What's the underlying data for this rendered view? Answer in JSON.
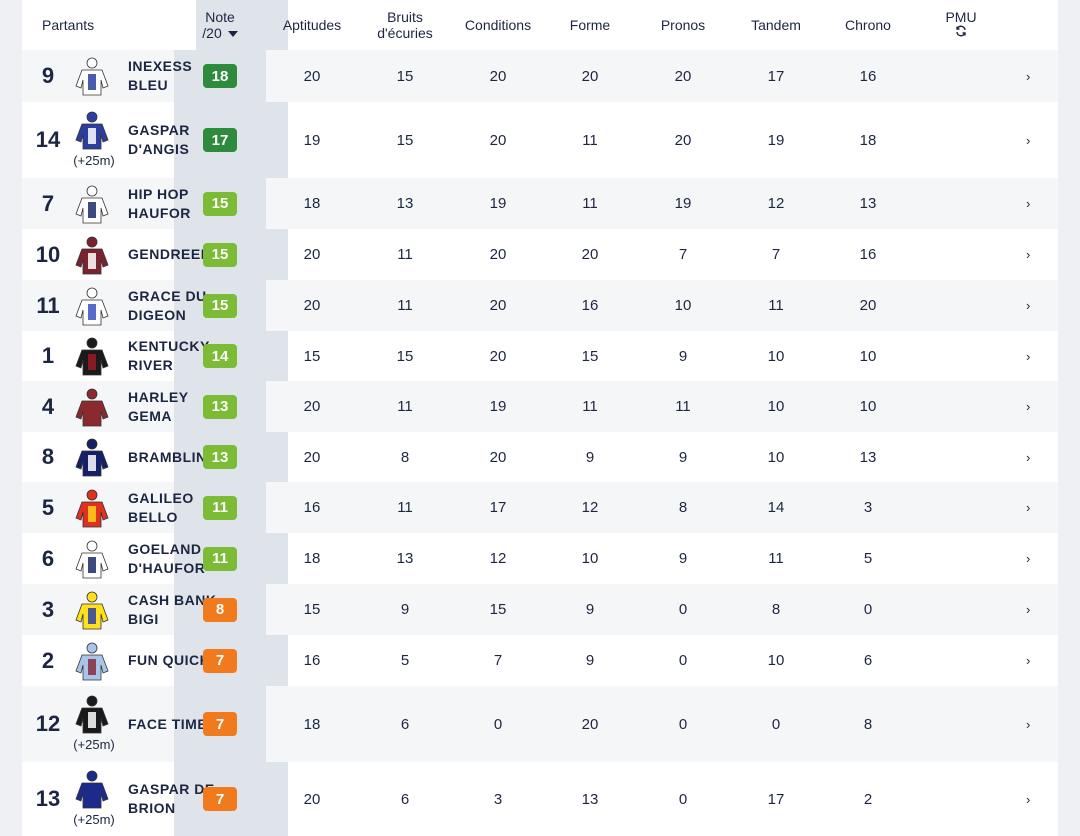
{
  "header": {
    "partants": "Partants",
    "note_line1": "Note",
    "note_line2": "/20",
    "aptitudes": "Aptitudes",
    "bruits_line1": "Bruits",
    "bruits_line2": "d'écuries",
    "conditions": "Conditions",
    "forme": "Forme",
    "pronos": "Pronos",
    "tandem": "Tandem",
    "chrono": "Chrono",
    "pmu": "PMU",
    "refresh_icon": "refresh-icon"
  },
  "colors": {
    "grade_dark_green": "#2e8b3e",
    "grade_green": "#7cbb35",
    "grade_orange": "#f07a1c",
    "note_band": "#dfe3ea"
  },
  "rows": [
    {
      "num": "9",
      "name": "INEXESS BLEU",
      "handicap": "",
      "grade": "18",
      "grade_color": "#2e8b3e",
      "silk": "blue-white-stripes",
      "scores": [
        "20",
        "15",
        "20",
        "20",
        "20",
        "17",
        "16"
      ]
    },
    {
      "num": "14",
      "name": "GASPAR D'ANGIS",
      "handicap": "(+25m)",
      "grade": "17",
      "grade_color": "#2e8b3e",
      "silk": "blue-white-sleeves",
      "scores": [
        "19",
        "15",
        "20",
        "11",
        "20",
        "19",
        "18"
      ]
    },
    {
      "num": "7",
      "name": "HIP HOP HAUFOR",
      "handicap": "",
      "grade": "15",
      "grade_color": "#7cbb35",
      "silk": "white-blue-dots",
      "scores": [
        "18",
        "13",
        "19",
        "11",
        "19",
        "12",
        "13"
      ]
    },
    {
      "num": "10",
      "name": "GENDREEN",
      "handicap": "",
      "grade": "15",
      "grade_color": "#7cbb35",
      "silk": "maroon-star",
      "scores": [
        "20",
        "11",
        "20",
        "20",
        "7",
        "7",
        "16"
      ]
    },
    {
      "num": "11",
      "name": "GRACE DU DIGEON",
      "handicap": "",
      "grade": "15",
      "grade_color": "#7cbb35",
      "silk": "white-blue-hoops",
      "scores": [
        "20",
        "11",
        "20",
        "16",
        "10",
        "11",
        "20"
      ]
    },
    {
      "num": "1",
      "name": "KENTUCKY RIVER",
      "handicap": "",
      "grade": "14",
      "grade_color": "#7cbb35",
      "silk": "black-red-stripes",
      "scores": [
        "15",
        "15",
        "20",
        "15",
        "9",
        "10",
        "10"
      ]
    },
    {
      "num": "4",
      "name": "HARLEY GEMA",
      "handicap": "",
      "grade": "13",
      "grade_color": "#7cbb35",
      "silk": "maroon",
      "scores": [
        "20",
        "11",
        "19",
        "11",
        "11",
        "10",
        "10"
      ]
    },
    {
      "num": "8",
      "name": "BRAMBLIN",
      "handicap": "",
      "grade": "13",
      "grade_color": "#7cbb35",
      "silk": "navy-white-band",
      "scores": [
        "20",
        "8",
        "20",
        "9",
        "9",
        "10",
        "13"
      ]
    },
    {
      "num": "5",
      "name": "GALILEO BELLO",
      "handicap": "",
      "grade": "11",
      "grade_color": "#7cbb35",
      "silk": "red-yellow-cross",
      "scores": [
        "16",
        "11",
        "17",
        "12",
        "8",
        "14",
        "3"
      ]
    },
    {
      "num": "6",
      "name": "GOELAND D'HAUFOR",
      "handicap": "",
      "grade": "11",
      "grade_color": "#7cbb35",
      "silk": "white-blue-dots",
      "scores": [
        "18",
        "13",
        "12",
        "10",
        "9",
        "11",
        "5"
      ]
    },
    {
      "num": "3",
      "name": "CASH BANK BIGI",
      "handicap": "",
      "grade": "8",
      "grade_color": "#f07a1c",
      "silk": "yellow-blue-dots",
      "scores": [
        "15",
        "9",
        "15",
        "9",
        "0",
        "8",
        "0"
      ]
    },
    {
      "num": "2",
      "name": "FUN QUICK",
      "handicap": "",
      "grade": "7",
      "grade_color": "#f07a1c",
      "silk": "lightblue-maroon-check",
      "scores": [
        "16",
        "5",
        "7",
        "9",
        "0",
        "10",
        "6"
      ]
    },
    {
      "num": "12",
      "name": "FACE TIME",
      "handicap": "(+25m)",
      "grade": "7",
      "grade_color": "#f07a1c",
      "silk": "black-white-sleeves",
      "scores": [
        "18",
        "6",
        "0",
        "20",
        "0",
        "0",
        "8"
      ]
    },
    {
      "num": "13",
      "name": "GASPAR DE BRION",
      "handicap": "(+25m)",
      "grade": "7",
      "grade_color": "#f07a1c",
      "silk": "navy-blue",
      "scores": [
        "20",
        "6",
        "3",
        "13",
        "0",
        "17",
        "2"
      ]
    }
  ],
  "chevron": "›"
}
